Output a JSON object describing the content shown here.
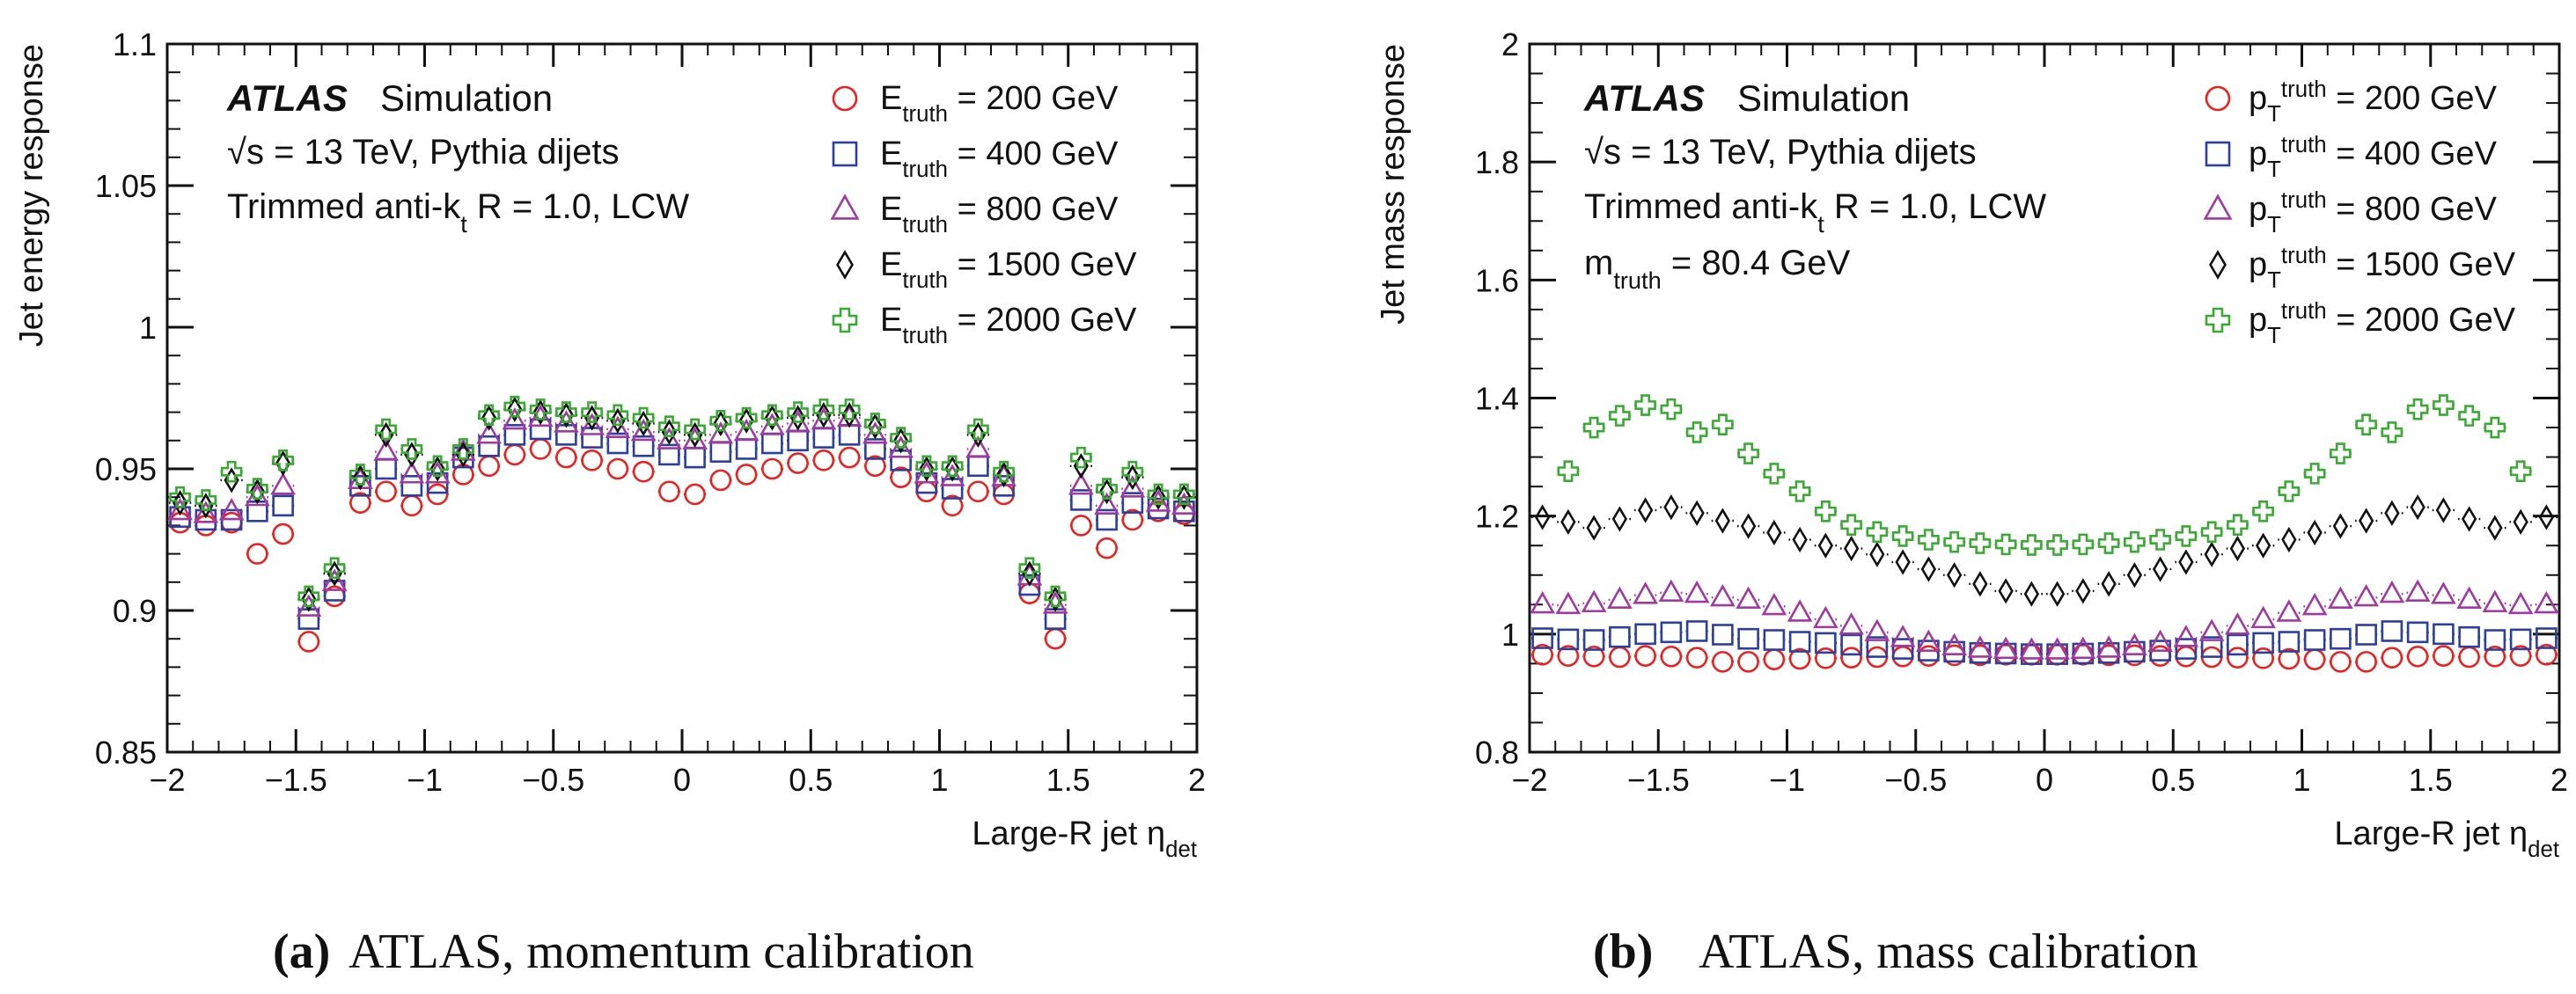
{
  "chart_data": [
    {
      "type": "scatter",
      "panel_letter": "(a)",
      "caption": "ATLAS, momentum calibration",
      "atlas_label": "ATLAS",
      "atlas_sub": "Simulation",
      "info_lines": [
        "√s = 13 TeV, Pythia dijets",
        "Trimmed anti-k_t R = 1.0, LCW"
      ],
      "xlabel": "Large-R jet η_det",
      "ylabel": "Jet energy response",
      "xlim": [
        -2,
        2
      ],
      "ylim": [
        0.85,
        1.1
      ],
      "xticks": [
        "−2",
        "−1.5",
        "−1",
        "−0.5",
        "0",
        "0.5",
        "1",
        "1.5",
        "2"
      ],
      "yticks": [
        "0.85",
        "0.9",
        "0.95",
        "1",
        "1.05",
        "1.1"
      ],
      "x": [
        -1.95,
        -1.85,
        -1.75,
        -1.65,
        -1.55,
        -1.45,
        -1.35,
        -1.25,
        -1.15,
        -1.05,
        -0.95,
        -0.85,
        -0.75,
        -0.65,
        -0.55,
        -0.45,
        -0.35,
        -0.25,
        -0.15,
        -0.05,
        0.05,
        0.15,
        0.25,
        0.35,
        0.45,
        0.55,
        0.65,
        0.75,
        0.85,
        0.95,
        1.05,
        1.15,
        1.25,
        1.35,
        1.45,
        1.55,
        1.65,
        1.75,
        1.85,
        1.95
      ],
      "series": [
        {
          "name": "E_truth = 200 GeV",
          "marker": "circle",
          "color": "#e8231f",
          "values": [
            0.931,
            0.93,
            0.931,
            0.92,
            0.927,
            0.889,
            0.905,
            0.938,
            0.942,
            0.937,
            0.941,
            0.948,
            0.951,
            0.955,
            0.957,
            0.954,
            0.953,
            0.95,
            0.949,
            0.942,
            0.941,
            0.946,
            0.948,
            0.95,
            0.952,
            0.953,
            0.954,
            0.951,
            0.947,
            0.942,
            0.937,
            0.942,
            0.941,
            0.906,
            0.89,
            0.93,
            0.922,
            0.932,
            0.935,
            0.934
          ]
        },
        {
          "name": "E_truth = 400 GeV",
          "marker": "square",
          "color": "#2b3f9e",
          "values": [
            0.933,
            0.932,
            0.932,
            0.935,
            0.937,
            0.897,
            0.907,
            0.944,
            0.95,
            0.944,
            0.945,
            0.954,
            0.958,
            0.962,
            0.964,
            0.962,
            0.961,
            0.959,
            0.958,
            0.955,
            0.954,
            0.956,
            0.957,
            0.959,
            0.96,
            0.961,
            0.962,
            0.957,
            0.953,
            0.945,
            0.943,
            0.951,
            0.944,
            0.909,
            0.897,
            0.939,
            0.932,
            0.938,
            0.936,
            0.935
          ]
        },
        {
          "name": "E_truth = 800 GeV",
          "marker": "triangle",
          "color": "#a03aa0",
          "values": [
            0.935,
            0.934,
            0.935,
            0.94,
            0.944,
            0.901,
            0.91,
            0.946,
            0.956,
            0.948,
            0.948,
            0.956,
            0.962,
            0.967,
            0.968,
            0.966,
            0.965,
            0.964,
            0.963,
            0.96,
            0.96,
            0.962,
            0.963,
            0.965,
            0.966,
            0.967,
            0.968,
            0.962,
            0.957,
            0.948,
            0.947,
            0.957,
            0.947,
            0.912,
            0.902,
            0.944,
            0.937,
            0.943,
            0.938,
            0.937
          ]
        },
        {
          "name": "E_truth = 1500 GeV",
          "marker": "diamond",
          "color": "#111111",
          "values": [
            0.938,
            0.937,
            0.946,
            0.942,
            0.952,
            0.904,
            0.913,
            0.947,
            0.962,
            0.955,
            0.95,
            0.955,
            0.968,
            0.971,
            0.97,
            0.969,
            0.968,
            0.967,
            0.966,
            0.963,
            0.962,
            0.966,
            0.967,
            0.968,
            0.968,
            0.969,
            0.969,
            0.965,
            0.96,
            0.95,
            0.95,
            0.962,
            0.948,
            0.913,
            0.904,
            0.951,
            0.942,
            0.947,
            0.94,
            0.94
          ]
        },
        {
          "name": "E_truth = 2000 GeV",
          "marker": "cross",
          "color": "#3aaa35",
          "values": [
            0.94,
            0.939,
            0.949,
            0.943,
            0.953,
            0.905,
            0.915,
            0.948,
            0.964,
            0.957,
            0.951,
            0.957,
            0.969,
            0.972,
            0.971,
            0.97,
            0.97,
            0.969,
            0.968,
            0.965,
            0.964,
            0.967,
            0.968,
            0.969,
            0.97,
            0.971,
            0.971,
            0.966,
            0.961,
            0.951,
            0.951,
            0.964,
            0.949,
            0.915,
            0.905,
            0.954,
            0.943,
            0.949,
            0.941,
            0.941
          ]
        }
      ]
    },
    {
      "type": "scatter",
      "panel_letter": "(b)",
      "caption": "ATLAS, mass calibration",
      "atlas_label": "ATLAS",
      "atlas_sub": "Simulation",
      "info_lines": [
        "√s = 13 TeV, Pythia dijets",
        "Trimmed anti-k_t R = 1.0, LCW",
        "m_truth = 80.4 GeV"
      ],
      "xlabel": "Large-R jet η_det",
      "ylabel": "Jet mass response",
      "xlim": [
        -2,
        2
      ],
      "ylim": [
        0.8,
        2
      ],
      "xticks": [
        "−2",
        "−1.5",
        "−1",
        "−0.5",
        "0",
        "0.5",
        "1",
        "1.5",
        "2"
      ],
      "yticks": [
        "0.8",
        "1",
        "1.2",
        "1.4",
        "1.6",
        "1.8",
        "2"
      ],
      "x": [
        -1.95,
        -1.85,
        -1.75,
        -1.65,
        -1.55,
        -1.45,
        -1.35,
        -1.25,
        -1.15,
        -1.05,
        -0.95,
        -0.85,
        -0.75,
        -0.65,
        -0.55,
        -0.45,
        -0.35,
        -0.25,
        -0.15,
        -0.05,
        0.05,
        0.15,
        0.25,
        0.35,
        0.45,
        0.55,
        0.65,
        0.75,
        0.85,
        0.95,
        1.05,
        1.15,
        1.25,
        1.35,
        1.45,
        1.55,
        1.65,
        1.75,
        1.85,
        1.95
      ],
      "series": [
        {
          "name": "p_T^truth = 200 GeV",
          "marker": "circle",
          "color": "#e8231f",
          "values": [
            0.965,
            0.963,
            0.962,
            0.961,
            0.963,
            0.962,
            0.96,
            0.953,
            0.953,
            0.957,
            0.958,
            0.959,
            0.96,
            0.961,
            0.962,
            0.963,
            0.964,
            0.964,
            0.965,
            0.965,
            0.965,
            0.965,
            0.964,
            0.964,
            0.963,
            0.962,
            0.961,
            0.96,
            0.959,
            0.958,
            0.957,
            0.953,
            0.953,
            0.96,
            0.962,
            0.963,
            0.961,
            0.962,
            0.963,
            0.965
          ]
        },
        {
          "name": "p_T^truth = 400 GeV",
          "marker": "square",
          "color": "#2b3f9e",
          "values": [
            0.993,
            0.991,
            0.99,
            0.995,
            1.0,
            1.003,
            1.005,
            0.999,
            0.992,
            0.99,
            0.987,
            0.985,
            0.982,
            0.978,
            0.975,
            0.972,
            0.97,
            0.968,
            0.967,
            0.966,
            0.966,
            0.967,
            0.968,
            0.97,
            0.972,
            0.975,
            0.978,
            0.982,
            0.985,
            0.987,
            0.99,
            0.992,
            0.999,
            1.005,
            1.003,
            1.0,
            0.995,
            0.99,
            0.991,
            0.993
          ]
        },
        {
          "name": "p_T^truth = 800 GeV",
          "marker": "triangle",
          "color": "#a03aa0",
          "values": [
            1.05,
            1.049,
            1.052,
            1.058,
            1.066,
            1.07,
            1.068,
            1.062,
            1.058,
            1.047,
            1.036,
            1.025,
            1.014,
            1.003,
            0.993,
            0.985,
            0.979,
            0.975,
            0.973,
            0.972,
            0.972,
            0.973,
            0.975,
            0.979,
            0.985,
            0.993,
            1.003,
            1.014,
            1.025,
            1.036,
            1.047,
            1.058,
            1.062,
            1.068,
            1.07,
            1.066,
            1.058,
            1.052,
            1.049,
            1.05
          ]
        },
        {
          "name": "p_T^truth = 1500 GeV",
          "marker": "diamond",
          "color": "#111111",
          "values": [
            1.198,
            1.19,
            1.18,
            1.195,
            1.21,
            1.215,
            1.205,
            1.192,
            1.183,
            1.172,
            1.16,
            1.15,
            1.145,
            1.135,
            1.122,
            1.11,
            1.1,
            1.085,
            1.073,
            1.068,
            1.068,
            1.073,
            1.085,
            1.1,
            1.11,
            1.122,
            1.135,
            1.145,
            1.15,
            1.16,
            1.172,
            1.183,
            1.192,
            1.205,
            1.215,
            1.21,
            1.195,
            1.18,
            1.19,
            1.198
          ]
        },
        {
          "name": "p_T^truth = 2000 GeV",
          "marker": "cross",
          "color": "#3aaa35",
          "values": [
            null,
            1.276,
            1.35,
            1.37,
            1.388,
            1.381,
            1.342,
            1.355,
            1.306,
            1.272,
            1.242,
            1.208,
            1.185,
            1.173,
            1.166,
            1.16,
            1.156,
            1.154,
            1.152,
            1.151,
            1.151,
            1.152,
            1.154,
            1.156,
            1.16,
            1.166,
            1.173,
            1.185,
            1.208,
            1.242,
            1.272,
            1.306,
            1.355,
            1.342,
            1.381,
            1.388,
            1.37,
            1.35,
            1.276,
            null
          ]
        }
      ]
    }
  ]
}
